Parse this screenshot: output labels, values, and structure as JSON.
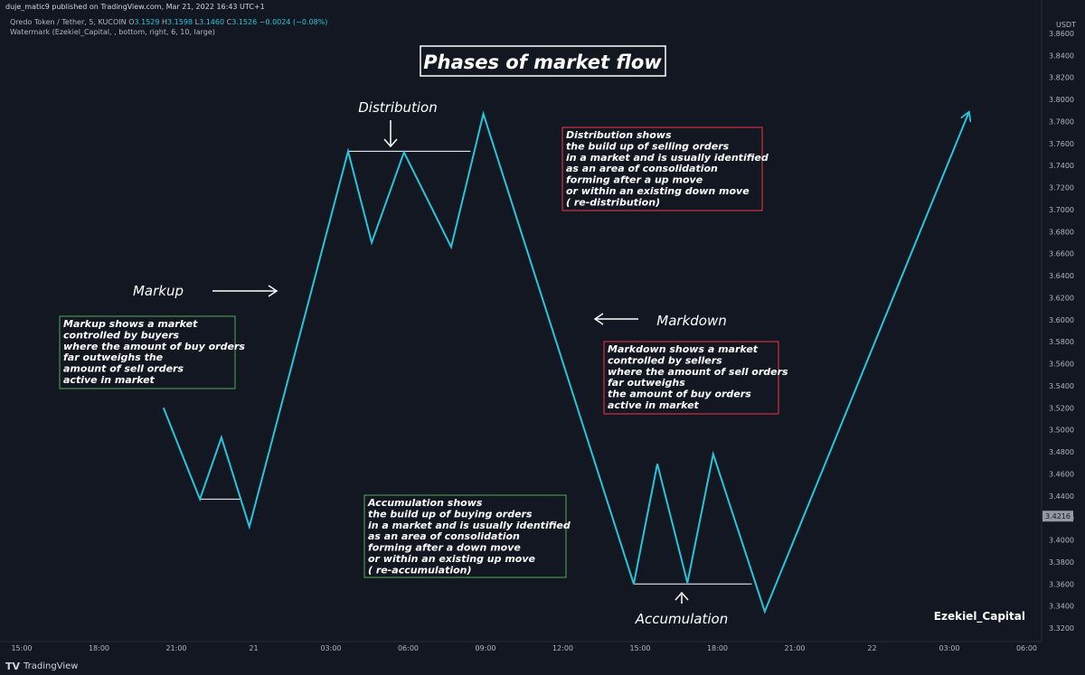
{
  "header": {
    "published_line": "duje_matic9 published on TradingView.com, Mar 21, 2022 16:43 UTC+1",
    "symbol": "Qredo Token / Tether, 5, KUCOIN",
    "open_label": "O",
    "open": "3.1529",
    "high_label": "H",
    "high": "3.1598",
    "low_label": "L",
    "low": "3.1460",
    "close_label": "C",
    "close": "3.1526",
    "change": "−0.0024 (−0.08%)",
    "watermark_line": "Watermark (Ezekiel_Capital, , bottom, right, 6, 10, large)"
  },
  "price_axis": {
    "currency": "USDT",
    "current_price": "3.4216",
    "current_price_color": "#9598a1"
  },
  "time_axis": {
    "labels": [
      "15:00",
      "18:00",
      "21:00",
      "21",
      "03:00",
      "06:00",
      "09:00",
      "12:00",
      "15:00",
      "18:00",
      "21:00",
      "22",
      "03:00",
      "06:00"
    ]
  },
  "annotations": {
    "title": "Phases of market flow",
    "distribution_label": "Distribution",
    "markup_label": "Markup",
    "markdown_label": "Markdown",
    "accumulation_label": "Accumulation",
    "watermark": "Ezekiel_Capital",
    "markup_box": [
      "Markup shows a market",
      "controlled by buyers",
      "where the amount of buy orders",
      "far outweighs the",
      "amount of sell orders",
      "active in market"
    ],
    "distribution_box": [
      "Distribution shows",
      "the build up of selling orders",
      "in a market and is usually identified",
      "as an area of consolidation",
      "forming after a up move",
      "or within an existing down move",
      "( re-distribution)"
    ],
    "markdown_box": [
      "Markdown shows a market",
      "controlled by sellers",
      "where the amount of sell orders",
      "far outweighs",
      "the amount of buy orders",
      "active in market"
    ],
    "accumulation_box": [
      "Accumulation shows",
      "the build up of buying orders",
      "in a market and is usually identified",
      "as an area of consolidation",
      "forming after a down move",
      "or within an existing up move",
      "( re-accumulation)"
    ]
  },
  "colors": {
    "line": "#26c6da",
    "green_box": "#4caf50",
    "red_box": "#f23645",
    "background": "#131722"
  },
  "footer": {
    "brand": "TradingView"
  },
  "chart_data": {
    "type": "line",
    "title": "Phases of market flow",
    "symbol": "Qredo Token / Tether, 5, KUCOIN",
    "ylabel": "USDT",
    "ylim": [
      3.31,
      3.875
    ],
    "yticks": [
      "3.3200",
      "3.3400",
      "3.3600",
      "3.3800",
      "3.4000",
      "3.4200",
      "3.4400",
      "3.4600",
      "3.4800",
      "3.5000",
      "3.5200",
      "3.5400",
      "3.5600",
      "3.5800",
      "3.6000",
      "3.6200",
      "3.6400",
      "3.6600",
      "3.6800",
      "3.7000",
      "3.7200",
      "3.7400",
      "3.7600",
      "3.7800",
      "3.8000",
      "3.8200",
      "3.8400",
      "3.8600"
    ],
    "xticks": [
      "15:00",
      "18:00",
      "21:00",
      "21",
      "03:00",
      "06:00",
      "09:00",
      "12:00",
      "15:00",
      "18:00",
      "21:00",
      "22",
      "03:00",
      "06:00"
    ],
    "series": [
      {
        "x": [
          "20:30",
          "21:55",
          "22:45",
          "23:50",
          "03:40",
          "04:35",
          "05:50",
          "07:40",
          "08:55",
          "14:45",
          "15:40",
          "16:50",
          "17:50",
          "19:50",
          "22 03:45"
        ],
        "values": [
          3.52,
          3.437,
          3.493,
          3.412,
          3.753,
          3.67,
          3.752,
          3.666,
          3.787,
          3.36,
          3.469,
          3.361,
          3.478,
          3.335,
          3.788
        ]
      }
    ],
    "horizontal_lines": [
      {
        "y": 3.437,
        "from": "21:55",
        "to": "23:30"
      },
      {
        "y": 3.753,
        "from": "03:40",
        "to": "08:25"
      },
      {
        "y": 3.36,
        "from": "14:45",
        "to": "19:20"
      }
    ]
  }
}
